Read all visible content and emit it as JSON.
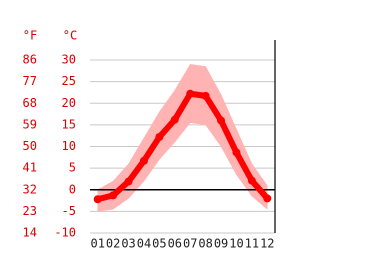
{
  "chart_data": {
    "type": "climate",
    "y_unit": "°C",
    "y2_unit": "°F",
    "categories": [
      "01",
      "02",
      "03",
      "04",
      "05",
      "06",
      "07",
      "08",
      "09",
      "10",
      "11",
      "12"
    ],
    "series": [
      {
        "color": "#ff0000",
        "values": [
          -2.2,
          -1.3,
          1.9,
          6.7,
          12.2,
          16.2,
          22.2,
          21.7,
          16,
          8.6,
          2.1,
          -2
        ]
      }
    ],
    "range": {
      "color": "#ffb3b3",
      "max": [
        0,
        2,
        6,
        12,
        18,
        23,
        29,
        28.5,
        22,
        14,
        6,
        1
      ],
      "min": [
        -5,
        -4.5,
        -2,
        2,
        7,
        11,
        15.5,
        15,
        10,
        3.5,
        -1.5,
        -4.5
      ]
    },
    "ylim": [
      -10,
      30
    ],
    "yticks": [
      30,
      25,
      20,
      15,
      10,
      5,
      0,
      -5,
      -10
    ],
    "y2lim": [
      14,
      86
    ],
    "y2ticks": [
      86,
      77,
      68,
      59,
      50,
      41,
      32,
      23,
      14
    ],
    "grid": true
  }
}
